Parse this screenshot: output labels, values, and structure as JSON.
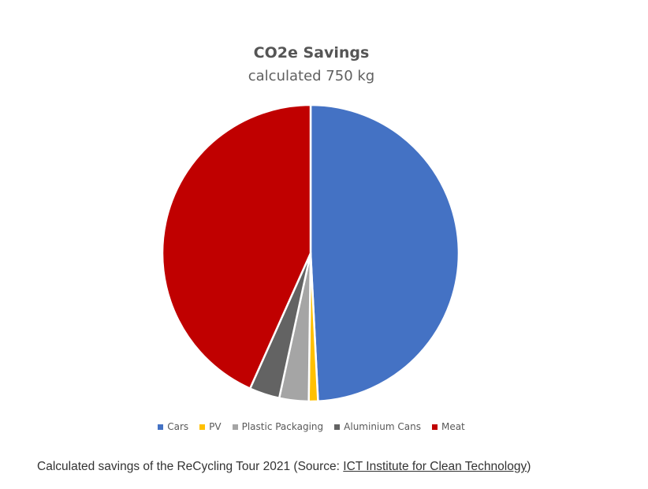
{
  "chart_data": {
    "type": "pie",
    "title": "CO2e Savings",
    "subtitle": "calculated 750 kg",
    "categories": [
      "Cars",
      "PV",
      "Plastic Packaging",
      "Aluminium Cans",
      "Meat"
    ],
    "values": [
      49.2,
      1.0,
      3.2,
      3.3,
      43.3
    ],
    "unit": "%",
    "colors": [
      "#4472C4",
      "#FFC000",
      "#A5A5A5",
      "#636363",
      "#C00000"
    ],
    "legend_position": "bottom",
    "start_angle_deg": 0,
    "direction": "clockwise"
  },
  "caption": {
    "prefix": "Calculated savings of the ReCycling Tour 2021 (Source: ",
    "link_text": "ICT Institute for Clean Technology",
    "suffix": ")"
  }
}
